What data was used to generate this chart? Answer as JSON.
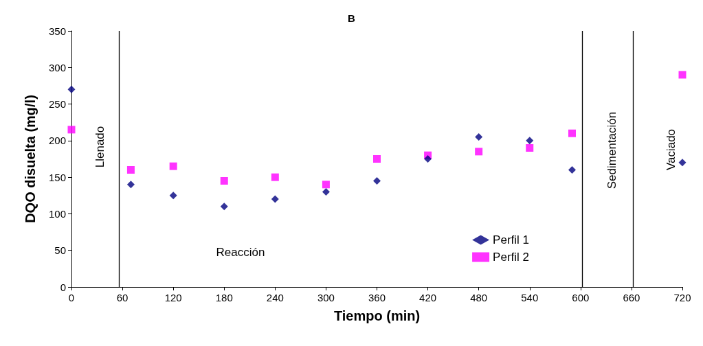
{
  "chart_data": {
    "type": "scatter",
    "title": "B",
    "xlabel": "Tiempo (min)",
    "ylabel": "DQO disuelta (mg/l)",
    "xlim": [
      0,
      720
    ],
    "xticks": [
      0,
      60,
      120,
      180,
      240,
      300,
      360,
      420,
      480,
      540,
      600,
      660,
      720
    ],
    "ylim": [
      0,
      350
    ],
    "yticks": [
      0,
      50,
      100,
      150,
      200,
      250,
      300,
      350
    ],
    "x": [
      0,
      70,
      120,
      180,
      240,
      300,
      360,
      420,
      480,
      540,
      590,
      720
    ],
    "series": [
      {
        "name": "Perfil 1",
        "color": "#000080",
        "marker": "diamond",
        "values": [
          270,
          140,
          125,
          110,
          120,
          130,
          145,
          175,
          205,
          200,
          160,
          170
        ]
      },
      {
        "name": "Perfil 2",
        "color": "#ff00ff",
        "marker": "square",
        "values": [
          215,
          160,
          165,
          145,
          150,
          140,
          175,
          180,
          185,
          190,
          210,
          290
        ]
      }
    ],
    "ref_lines": [
      {
        "axis": "x",
        "value": 56,
        "color": "#000000"
      },
      {
        "axis": "x",
        "value": 602,
        "color": "#000000"
      },
      {
        "axis": "x",
        "value": 662,
        "color": "#000000"
      }
    ],
    "annotations": [
      "Llenado",
      "Reacción",
      "Sedimentación",
      "Vaciado"
    ],
    "grid": false,
    "legend": "bottom right"
  }
}
